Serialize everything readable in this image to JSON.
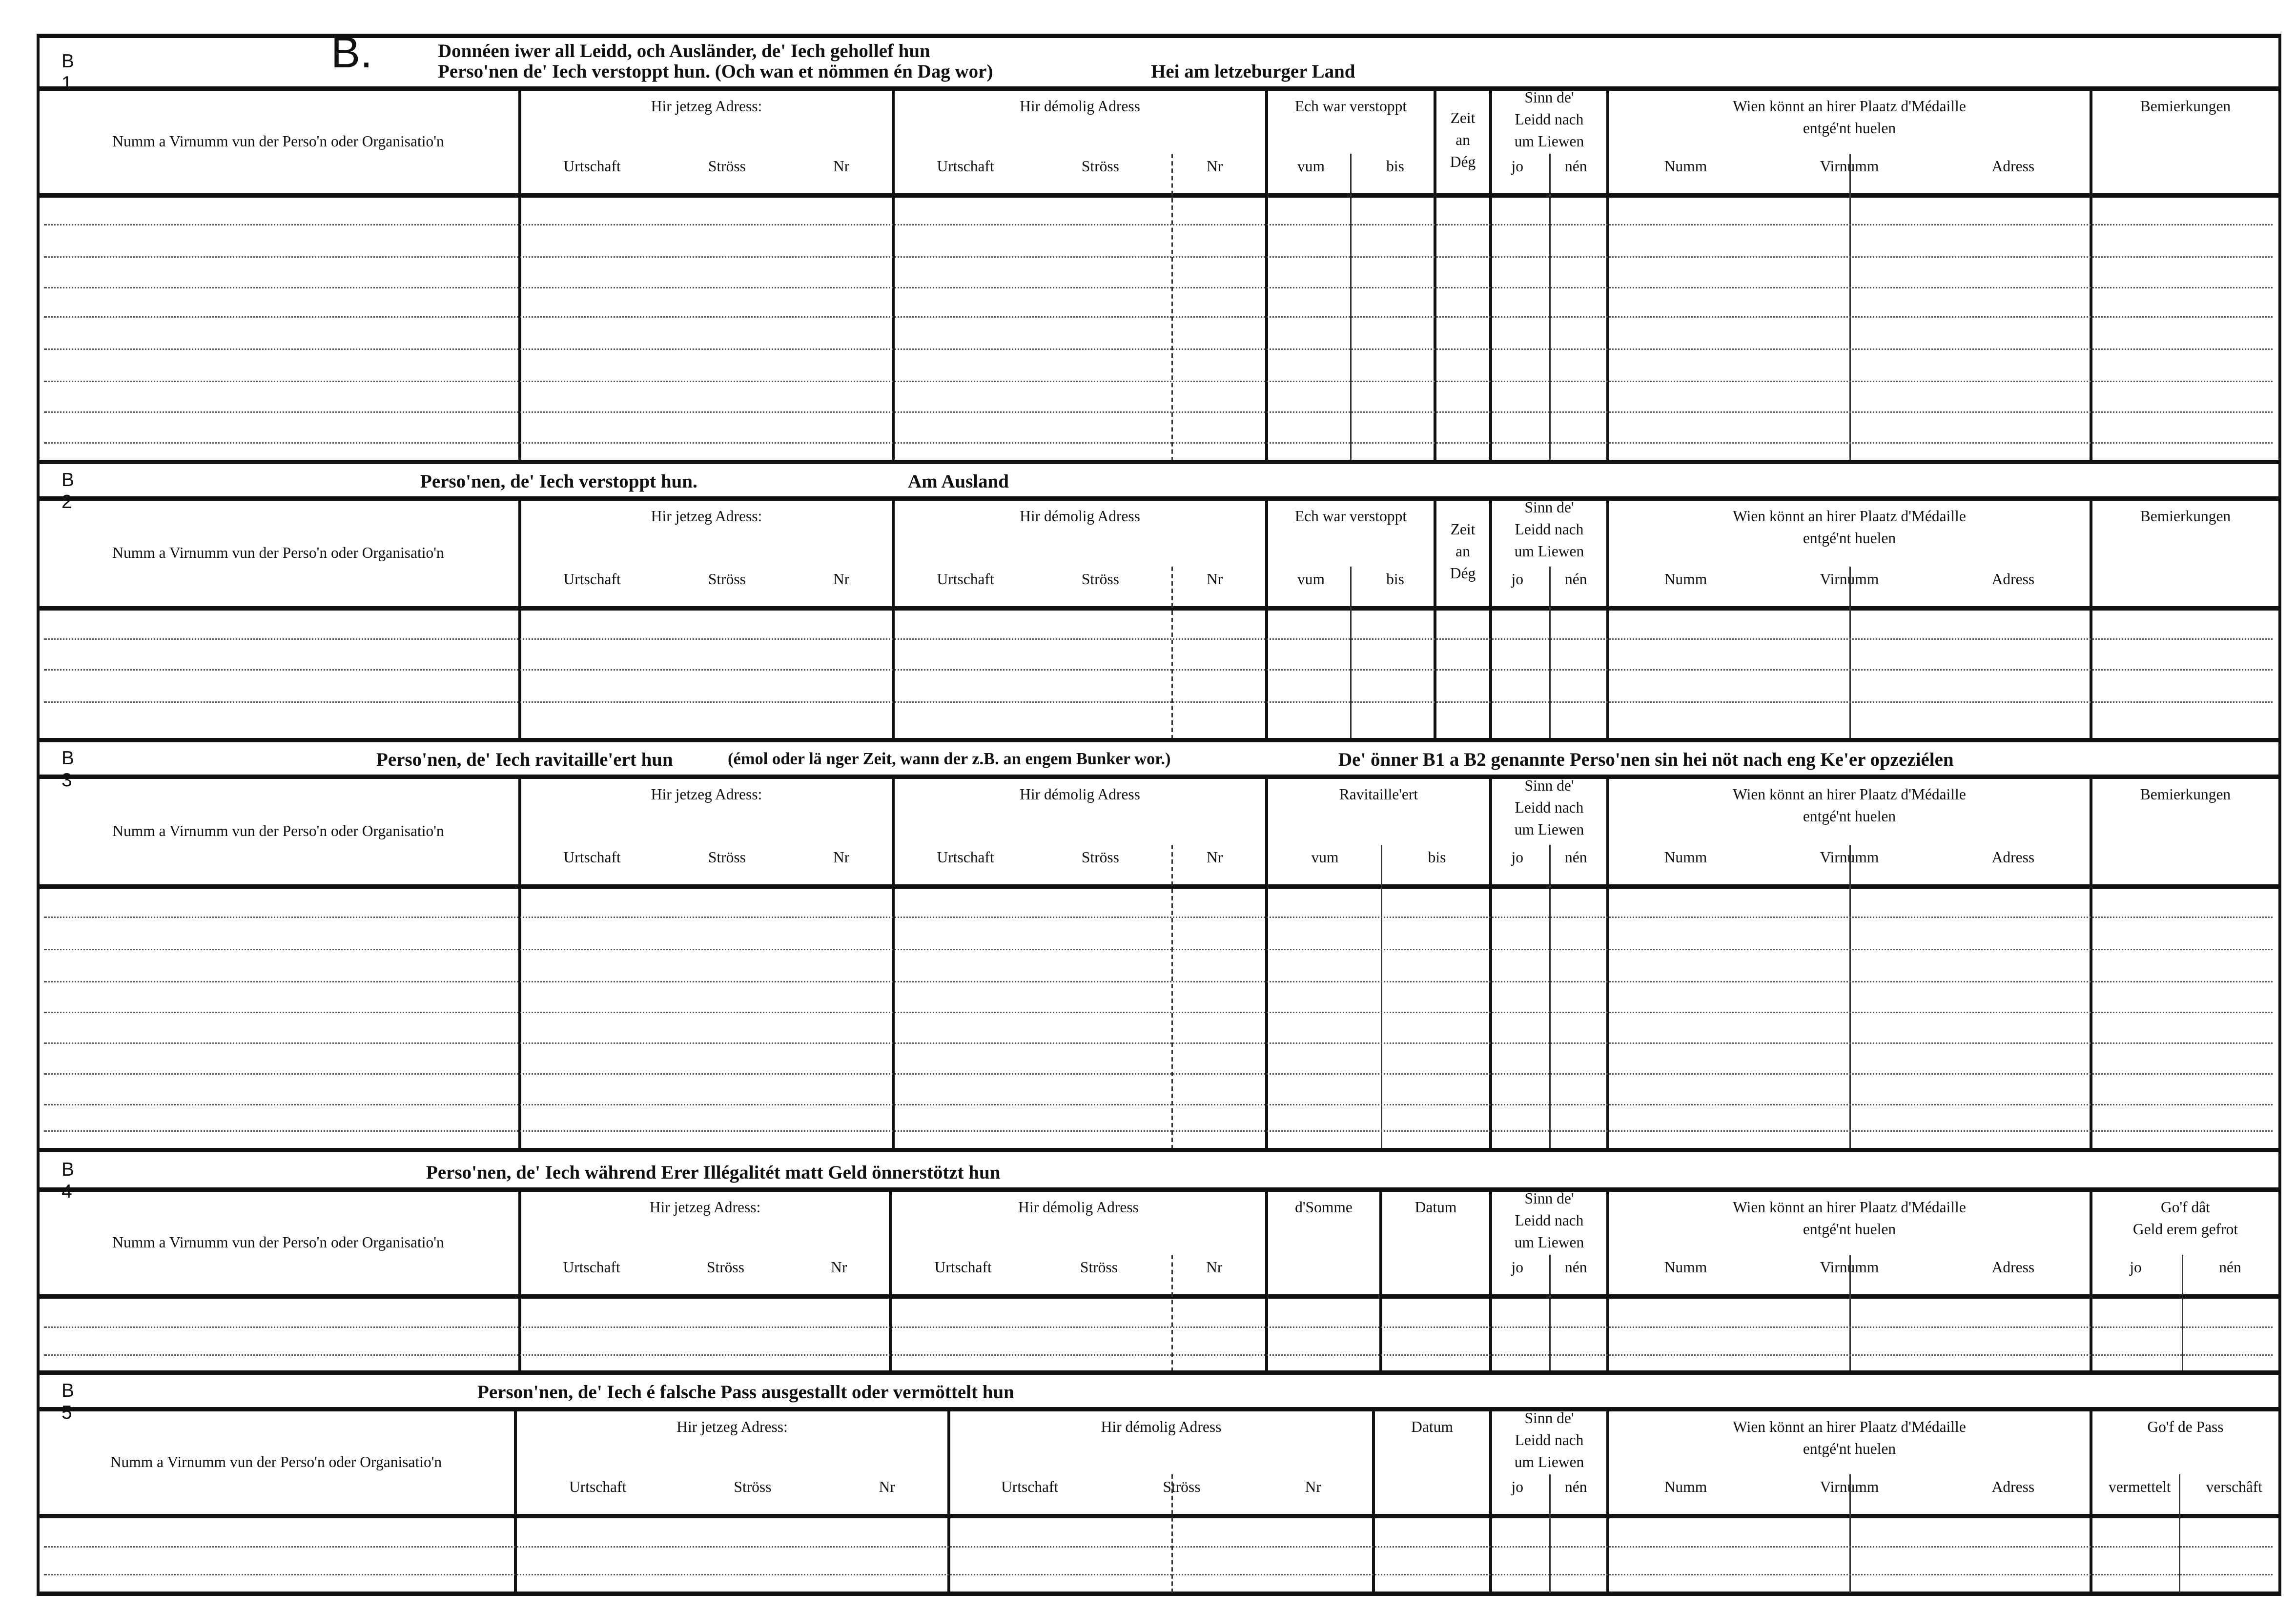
{
  "form_letter": "B.",
  "sections": [
    {
      "id": "B 1",
      "title": [
        "Donnéen iwer all Leidd, och Ausländer, de' Iech gehollef hun",
        "Perso'nen de' Iech verstoppt hun. (Och wan et nömmen én Dag wor)"
      ],
      "extra": "Hei am letzeburger Land",
      "columns": [
        {
          "label": [
            "Numm a Virnumm vun der Perso'n oder Organisatio'n"
          ],
          "sub": []
        },
        {
          "label": [
            "Hir jetzeg Adress:"
          ],
          "sub": [
            "Urtschaft",
            "Ströss",
            "Nr"
          ]
        },
        {
          "label": [
            "Hir démolig Adress"
          ],
          "sub": [
            "Urtschaft",
            "Ströss",
            "Nr"
          ]
        },
        {
          "label": [
            "Ech war verstoppt"
          ],
          "sub": [
            "vum",
            "bis"
          ]
        },
        {
          "label": [
            "Zeit",
            "an",
            "Dég"
          ],
          "sub": []
        },
        {
          "label": [
            "Sinn  de'",
            "Leidd  nach",
            "um Liewen"
          ],
          "sub": [
            "jo",
            "nén"
          ]
        },
        {
          "label": [
            "Wien  könnt  an  hirer  Plaatz  d'Médaille",
            "entgé'nt huelen"
          ],
          "sub": [
            "Numm",
            "Virnumm",
            "Adress"
          ]
        },
        {
          "label": [
            "Bemierkungen"
          ],
          "sub": []
        }
      ]
    },
    {
      "id": "B 2",
      "title": [
        "Perso'nen, de' Iech verstoppt hun."
      ],
      "extra": "Am  Ausland",
      "columns": [
        {
          "label": [
            "Numm a Virnumm vun der Perso'n oder Organisatio'n"
          ],
          "sub": []
        },
        {
          "label": [
            "Hir jetzeg Adress:"
          ],
          "sub": [
            "Urtschaft",
            "Ströss",
            "Nr"
          ]
        },
        {
          "label": [
            "Hir démolig Adress"
          ],
          "sub": [
            "Urtschaft",
            "Ströss",
            "Nr"
          ]
        },
        {
          "label": [
            "Ech war verstoppt"
          ],
          "sub": [
            "vum",
            "bis"
          ]
        },
        {
          "label": [
            "Zeit",
            "an",
            "Dég"
          ],
          "sub": []
        },
        {
          "label": [
            "Sinn  de'",
            "Leidd  nach",
            "um Liewen"
          ],
          "sub": [
            "jo",
            "nén"
          ]
        },
        {
          "label": [
            "Wien  könnt  an  hirer  Plaatz  d'Médaille",
            "entgé'nt huelen"
          ],
          "sub": [
            "Numm",
            "Virnumm",
            "Adress"
          ]
        },
        {
          "label": [
            "Bemierkungen"
          ],
          "sub": []
        }
      ]
    },
    {
      "id": "B 3",
      "title": [
        "Perso'nen, de' Iech ravitaille'ert hun"
      ],
      "title_note": "(émol oder lä nger Zeit, wann der z.B. an engem Bunker wor.)",
      "extra": "De' önner B1 a B2 genannte Perso'nen sin hei nöt nach eng Ke'er opzeziélen",
      "columns": [
        {
          "label": [
            "Numm a Virnumm vun der Perso'n oder Organisatio'n"
          ],
          "sub": []
        },
        {
          "label": [
            "Hir jetzeg Adress:"
          ],
          "sub": [
            "Urtschaft",
            "Ströss",
            "Nr"
          ]
        },
        {
          "label": [
            "Hir démolig Adress"
          ],
          "sub": [
            "Urtschaft",
            "Ströss",
            "Nr"
          ]
        },
        {
          "label": [
            "Ravitaille'ert"
          ],
          "sub": [
            "vum",
            "bis"
          ]
        },
        {
          "label": [
            "Sinn  de'",
            "Leidd  nach",
            "um Liewen"
          ],
          "sub": [
            "jo",
            "nén"
          ]
        },
        {
          "label": [
            "Wien  könnt  an  hirer  Plaatz  d'Médaille",
            "entgé'nt huelen"
          ],
          "sub": [
            "Numm",
            "Virnumm",
            "Adress"
          ]
        },
        {
          "label": [
            "Bemierkungen"
          ],
          "sub": []
        }
      ]
    },
    {
      "id": "B 4",
      "title": [
        "Perso'nen, de' Iech während Erer Illégalitét matt  Geld önnerstötzt hun"
      ],
      "extra": "",
      "columns": [
        {
          "label": [
            "Numm a Virnumm vun der Perso'n oder Organisatio'n"
          ],
          "sub": []
        },
        {
          "label": [
            "Hir jetzeg Adress:"
          ],
          "sub": [
            "Urtschaft",
            "Ströss",
            "Nr"
          ]
        },
        {
          "label": [
            "Hir démolig Adress"
          ],
          "sub": [
            "Urtschaft",
            "Ströss",
            "Nr"
          ]
        },
        {
          "label": [
            "d'Somme"
          ],
          "sub": []
        },
        {
          "label": [
            "Datum"
          ],
          "sub": []
        },
        {
          "label": [
            "Sinn  de'",
            "Leidd  nach",
            "um Liewen"
          ],
          "sub": [
            "jo",
            "nén"
          ]
        },
        {
          "label": [
            "Wien  könnt  an  hirer  Plaatz  d'Médaille",
            "entgé'nt huelen"
          ],
          "sub": [
            "Numm",
            "Virnumm",
            "Adress"
          ]
        },
        {
          "label": [
            "Go'f  dât",
            "Geld  erem  gefrot"
          ],
          "sub": [
            "jo",
            "nén"
          ]
        }
      ]
    },
    {
      "id": "B 5",
      "title": [
        "Person'nen, de' Iech é falsche Pass ausgestallt oder  vermöttelt hun"
      ],
      "extra": "",
      "columns": [
        {
          "label": [
            "Numm a Virnumm vun der Perso'n oder Organisatio'n"
          ],
          "sub": []
        },
        {
          "label": [
            "Hir jetzeg Adress:"
          ],
          "sub": [
            "Urtschaft",
            "Ströss",
            "Nr"
          ]
        },
        {
          "label": [
            "Hir démolig Adress"
          ],
          "sub": [
            "Urtschaft",
            "Ströss",
            "Nr"
          ]
        },
        {
          "label": [
            "Datum"
          ],
          "sub": []
        },
        {
          "label": [
            "Sinn  de'",
            "Leidd  nach",
            "um Liewen"
          ],
          "sub": [
            "jo",
            "nén"
          ]
        },
        {
          "label": [
            "Wien  könnt  an  hirer  Plaatz  d'Médaille",
            "entgé'nt huelen"
          ],
          "sub": [
            "Numm",
            "Virnumm",
            "Adress"
          ]
        },
        {
          "label": [
            "Go'f de Pass"
          ],
          "sub": [
            "vermettelt",
            "verschâft"
          ]
        }
      ]
    }
  ]
}
